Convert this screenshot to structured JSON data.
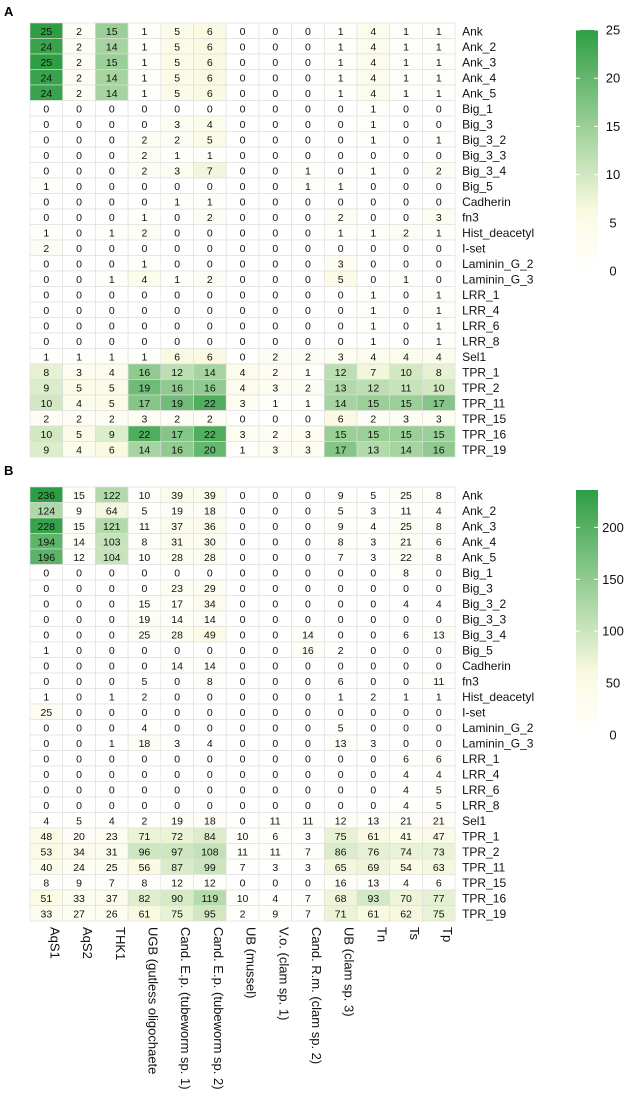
{
  "chart_data": [
    {
      "type": "heatmap",
      "panel": "A",
      "columns": [
        "AqS1",
        "AqS2",
        "THK1",
        "UGB (gutless oligochaete",
        "Cand. E.p. (tubeworm sp. 1)",
        "Cand. E.p. (tubeworm sp. 2)",
        "UB (mussel)",
        "V.o. (clam sp. 1)",
        "Cand. R.m. (clam sp. 2)",
        "UB (clam sp. 3)",
        "Tn",
        "Ts",
        "Tp"
      ],
      "rows": [
        "Ank",
        "Ank_2",
        "Ank_3",
        "Ank_4",
        "Ank_5",
        "Big_1",
        "Big_3",
        "Big_3_2",
        "Big_3_3",
        "Big_3_4",
        "Big_5",
        "Cadherin",
        "fn3",
        "Hist_deacetyl",
        "I-set",
        "Laminin_G_2",
        "Laminin_G_3",
        "LRR_1",
        "LRR_4",
        "LRR_6",
        "LRR_8",
        "Sel1",
        "TPR_1",
        "TPR_2",
        "TPR_11",
        "TPR_15",
        "TPR_16",
        "TPR_19"
      ],
      "values": [
        [
          25,
          2,
          15,
          1,
          5,
          6,
          0,
          0,
          0,
          1,
          4,
          1,
          1
        ],
        [
          24,
          2,
          14,
          1,
          5,
          6,
          0,
          0,
          0,
          1,
          4,
          1,
          1
        ],
        [
          25,
          2,
          15,
          1,
          5,
          6,
          0,
          0,
          0,
          1,
          4,
          1,
          1
        ],
        [
          24,
          2,
          14,
          1,
          5,
          6,
          0,
          0,
          0,
          1,
          4,
          1,
          1
        ],
        [
          24,
          2,
          14,
          1,
          5,
          6,
          0,
          0,
          0,
          1,
          4,
          1,
          1
        ],
        [
          0,
          0,
          0,
          0,
          0,
          0,
          0,
          0,
          0,
          0,
          1,
          0,
          0
        ],
        [
          0,
          0,
          0,
          0,
          3,
          4,
          0,
          0,
          0,
          0,
          1,
          0,
          0
        ],
        [
          0,
          0,
          0,
          2,
          2,
          5,
          0,
          0,
          0,
          0,
          1,
          0,
          1
        ],
        [
          0,
          0,
          0,
          2,
          1,
          1,
          0,
          0,
          0,
          0,
          0,
          0,
          0
        ],
        [
          0,
          0,
          0,
          2,
          3,
          7,
          0,
          0,
          1,
          0,
          1,
          0,
          2
        ],
        [
          1,
          0,
          0,
          0,
          0,
          0,
          0,
          0,
          1,
          1,
          0,
          0,
          0
        ],
        [
          0,
          0,
          0,
          0,
          1,
          1,
          0,
          0,
          0,
          0,
          0,
          0,
          0
        ],
        [
          0,
          0,
          0,
          1,
          0,
          2,
          0,
          0,
          0,
          2,
          0,
          0,
          3
        ],
        [
          1,
          0,
          1,
          2,
          0,
          0,
          0,
          0,
          0,
          1,
          1,
          2,
          1
        ],
        [
          2,
          0,
          0,
          0,
          0,
          0,
          0,
          0,
          0,
          0,
          0,
          0,
          0
        ],
        [
          0,
          0,
          0,
          1,
          0,
          0,
          0,
          0,
          0,
          3,
          0,
          0,
          0
        ],
        [
          0,
          0,
          1,
          4,
          1,
          2,
          0,
          0,
          0,
          5,
          0,
          1,
          0
        ],
        [
          0,
          0,
          0,
          0,
          0,
          0,
          0,
          0,
          0,
          0,
          1,
          0,
          1
        ],
        [
          0,
          0,
          0,
          0,
          0,
          0,
          0,
          0,
          0,
          0,
          1,
          0,
          1
        ],
        [
          0,
          0,
          0,
          0,
          0,
          0,
          0,
          0,
          0,
          0,
          1,
          0,
          1
        ],
        [
          0,
          0,
          0,
          0,
          0,
          0,
          0,
          0,
          0,
          0,
          1,
          0,
          1
        ],
        [
          1,
          1,
          1,
          1,
          6,
          6,
          0,
          2,
          2,
          3,
          4,
          4,
          4
        ],
        [
          8,
          3,
          4,
          16,
          12,
          14,
          4,
          2,
          1,
          12,
          7,
          10,
          8
        ],
        [
          9,
          5,
          5,
          19,
          16,
          16,
          4,
          3,
          2,
          13,
          12,
          11,
          10
        ],
        [
          10,
          4,
          5,
          17,
          19,
          22,
          3,
          1,
          1,
          14,
          15,
          15,
          17
        ],
        [
          2,
          2,
          2,
          3,
          2,
          2,
          0,
          0,
          0,
          6,
          2,
          3,
          3
        ],
        [
          10,
          5,
          9,
          22,
          17,
          22,
          3,
          2,
          3,
          15,
          15,
          15,
          15
        ],
        [
          9,
          4,
          6,
          14,
          16,
          20,
          1,
          3,
          3,
          17,
          13,
          14,
          16
        ]
      ],
      "legend": {
        "min": 0,
        "max": 25,
        "ticks": [
          0,
          5,
          10,
          15,
          20,
          25
        ]
      },
      "colors": {
        "low": "#ffffff",
        "mid": "#fafae2",
        "high": "#2e9e44"
      },
      "xlabel": "",
      "ylabel": ""
    },
    {
      "type": "heatmap",
      "panel": "B",
      "columns": [
        "AqS1",
        "AqS2",
        "THK1",
        "UGB (gutless oligochaete",
        "Cand. E.p. (tubeworm sp. 1)",
        "Cand. E.p. (tubeworm sp. 2)",
        "UB (mussel)",
        "V.o. (clam sp. 1)",
        "Cand. R.m. (clam sp. 2)",
        "UB (clam sp. 3)",
        "Tn",
        "Ts",
        "Tp"
      ],
      "rows": [
        "Ank",
        "Ank_2",
        "Ank_3",
        "Ank_4",
        "Ank_5",
        "Big_1",
        "Big_3",
        "Big_3_2",
        "Big_3_3",
        "Big_3_4",
        "Big_5",
        "Cadherin",
        "fn3",
        "Hist_deacetyl",
        "I-set",
        "Laminin_G_2",
        "Laminin_G_3",
        "LRR_1",
        "LRR_4",
        "LRR_6",
        "LRR_8",
        "Sel1",
        "TPR_1",
        "TPR_2",
        "TPR_11",
        "TPR_15",
        "TPR_16",
        "TPR_19"
      ],
      "values": [
        [
          236,
          15,
          122,
          10,
          39,
          39,
          0,
          0,
          0,
          9,
          5,
          25,
          8
        ],
        [
          124,
          9,
          64,
          5,
          19,
          18,
          0,
          0,
          0,
          5,
          3,
          11,
          4
        ],
        [
          228,
          15,
          121,
          11,
          37,
          36,
          0,
          0,
          0,
          9,
          4,
          25,
          8
        ],
        [
          194,
          14,
          103,
          8,
          31,
          30,
          0,
          0,
          0,
          8,
          3,
          21,
          6
        ],
        [
          196,
          12,
          104,
          10,
          28,
          28,
          0,
          0,
          0,
          7,
          3,
          22,
          8
        ],
        [
          0,
          0,
          0,
          0,
          0,
          0,
          0,
          0,
          0,
          0,
          0,
          8,
          0
        ],
        [
          0,
          0,
          0,
          0,
          23,
          29,
          0,
          0,
          0,
          0,
          0,
          0,
          0
        ],
        [
          0,
          0,
          0,
          15,
          17,
          34,
          0,
          0,
          0,
          0,
          0,
          4,
          4
        ],
        [
          0,
          0,
          0,
          19,
          14,
          14,
          0,
          0,
          0,
          0,
          0,
          0,
          0
        ],
        [
          0,
          0,
          0,
          25,
          28,
          49,
          0,
          0,
          14,
          0,
          0,
          6,
          13
        ],
        [
          1,
          0,
          0,
          0,
          0,
          0,
          0,
          0,
          16,
          2,
          0,
          0,
          0
        ],
        [
          0,
          0,
          0,
          0,
          14,
          14,
          0,
          0,
          0,
          0,
          0,
          0,
          0
        ],
        [
          0,
          0,
          0,
          5,
          0,
          8,
          0,
          0,
          0,
          6,
          0,
          0,
          11
        ],
        [
          1,
          0,
          1,
          2,
          0,
          0,
          0,
          0,
          0,
          1,
          2,
          1,
          1
        ],
        [
          25,
          0,
          0,
          0,
          0,
          0,
          0,
          0,
          0,
          0,
          0,
          0,
          0
        ],
        [
          0,
          0,
          0,
          4,
          0,
          0,
          0,
          0,
          0,
          5,
          0,
          0,
          0
        ],
        [
          0,
          0,
          1,
          18,
          3,
          4,
          0,
          0,
          0,
          13,
          3,
          0,
          0
        ],
        [
          0,
          0,
          0,
          0,
          0,
          0,
          0,
          0,
          0,
          0,
          0,
          6,
          6
        ],
        [
          0,
          0,
          0,
          0,
          0,
          0,
          0,
          0,
          0,
          0,
          0,
          4,
          4
        ],
        [
          0,
          0,
          0,
          0,
          0,
          0,
          0,
          0,
          0,
          0,
          0,
          4,
          5
        ],
        [
          0,
          0,
          0,
          0,
          0,
          0,
          0,
          0,
          0,
          0,
          0,
          4,
          5
        ],
        [
          4,
          5,
          4,
          2,
          19,
          18,
          0,
          11,
          11,
          12,
          13,
          21,
          21
        ],
        [
          48,
          20,
          23,
          71,
          72,
          84,
          10,
          6,
          3,
          75,
          61,
          41,
          47
        ],
        [
          53,
          34,
          31,
          96,
          97,
          108,
          11,
          11,
          7,
          86,
          76,
          74,
          73
        ],
        [
          40,
          24,
          25,
          56,
          87,
          99,
          7,
          3,
          3,
          65,
          69,
          54,
          63
        ],
        [
          8,
          9,
          7,
          8,
          12,
          12,
          0,
          0,
          0,
          16,
          13,
          4,
          6
        ],
        [
          51,
          33,
          37,
          82,
          90,
          119,
          10,
          4,
          7,
          68,
          93,
          70,
          77
        ],
        [
          33,
          27,
          26,
          61,
          75,
          95,
          2,
          9,
          7,
          71,
          61,
          62,
          75
        ]
      ],
      "legend": {
        "min": 0,
        "max": 236,
        "ticks": [
          0,
          50,
          100,
          150,
          200
        ]
      },
      "colors": {
        "low": "#ffffff",
        "mid": "#fafae2",
        "high": "#2e9e44"
      },
      "xlabel": "",
      "ylabel": ""
    }
  ]
}
